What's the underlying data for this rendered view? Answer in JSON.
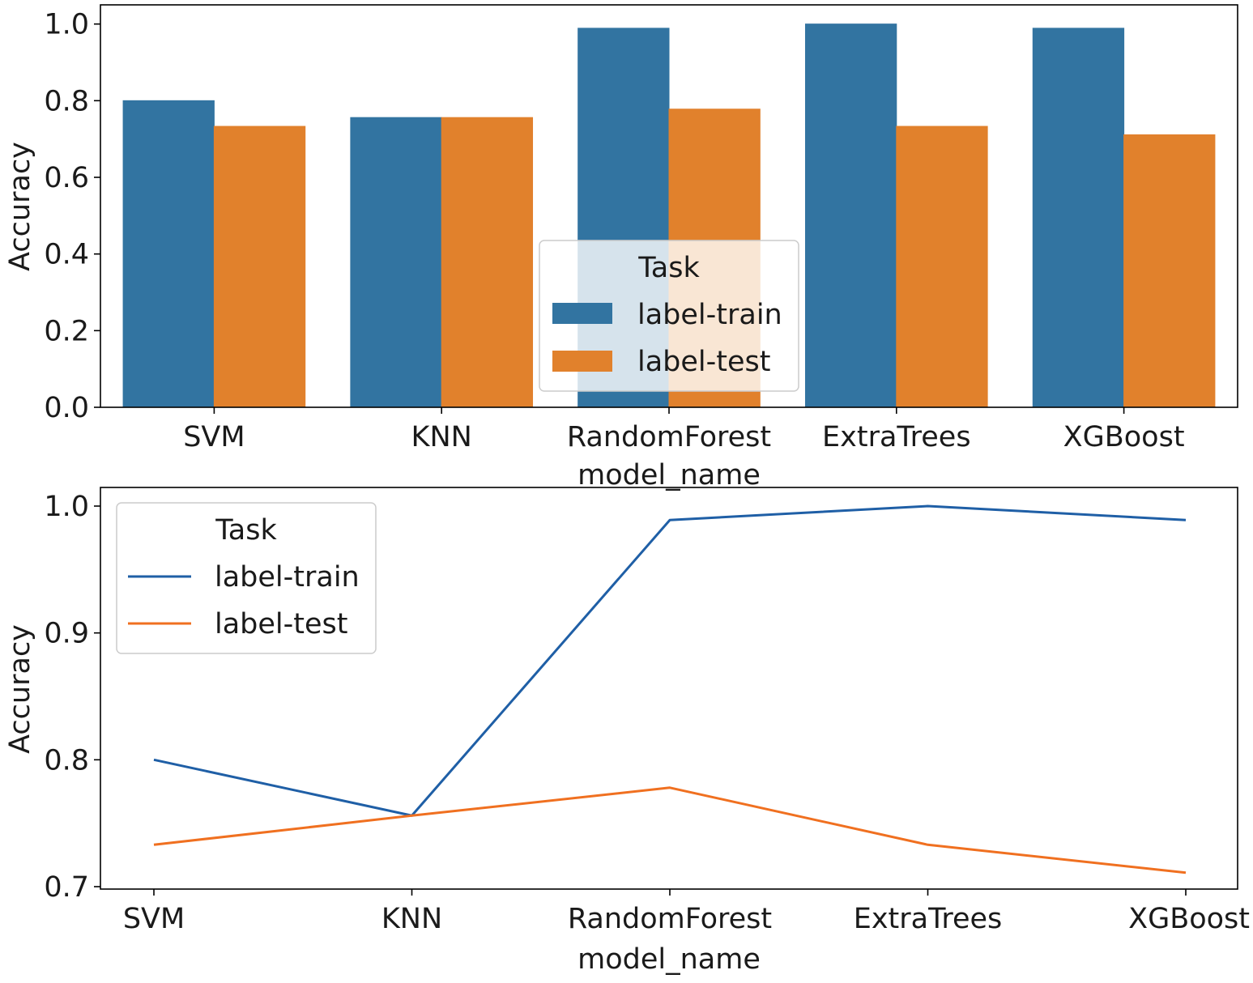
{
  "chart_data": [
    {
      "type": "bar",
      "categories": [
        "SVM",
        "KNN",
        "RandomForest",
        "ExtraTrees",
        "XGBoost"
      ],
      "series": [
        {
          "name": "label-train",
          "values": [
            0.8,
            0.756,
            0.989,
            1.0,
            0.989
          ]
        },
        {
          "name": "label-test",
          "values": [
            0.733,
            0.756,
            0.778,
            0.733,
            0.711
          ]
        }
      ],
      "title": "",
      "xlabel": "model_name",
      "ylabel": "Accuracy",
      "ylim": [
        0,
        1.05
      ],
      "yticks": [
        0.0,
        0.2,
        0.4,
        0.6,
        0.8,
        1.0
      ],
      "ytick_labels": [
        "0.0",
        "0.2",
        "0.4",
        "0.6",
        "0.8",
        "1.0"
      ],
      "legend": {
        "title": "Task",
        "placement": "center-bottom"
      },
      "colors": [
        "#3274a1",
        "#e1812c"
      ]
    },
    {
      "type": "line",
      "categories": [
        "SVM",
        "KNN",
        "RandomForest",
        "ExtraTrees",
        "XGBoost"
      ],
      "series": [
        {
          "name": "label-train",
          "values": [
            0.8,
            0.756,
            0.989,
            1.0,
            0.989
          ]
        },
        {
          "name": "label-test",
          "values": [
            0.733,
            0.756,
            0.778,
            0.733,
            0.711
          ]
        }
      ],
      "title": "",
      "xlabel": "model_name",
      "ylabel": "Accuracy",
      "ylim": [
        0.7,
        1.0
      ],
      "yticks": [
        0.7,
        0.8,
        0.9,
        1.0
      ],
      "ytick_labels": [
        "0.7",
        "0.8",
        "0.9",
        "1.0"
      ],
      "legend": {
        "title": "Task",
        "placement": "upper-left"
      },
      "colors": [
        "#1f5fa6",
        "#f07020"
      ]
    }
  ]
}
